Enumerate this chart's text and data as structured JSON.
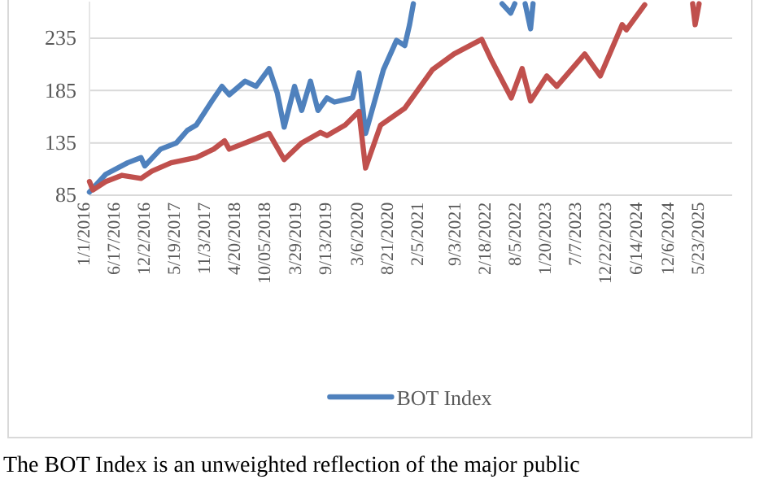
{
  "chart_data": {
    "type": "line",
    "series": [
      {
        "name": "BOT Index",
        "color": "#4f81bd",
        "x": [
          "2016-01-01",
          "2016-04-01",
          "2016-08-01",
          "2016-10-15",
          "2016-11-05",
          "2017-02-01",
          "2017-05-01",
          "2017-07-01",
          "2017-08-20",
          "2017-11-15",
          "2018-01-10",
          "2018-02-20",
          "2018-05-20",
          "2018-07-20",
          "2018-10-01",
          "2018-11-15",
          "2018-12-24",
          "2019-02-20",
          "2019-04-01",
          "2019-05-20",
          "2019-07-01",
          "2019-08-20",
          "2019-10-01",
          "2020-01-10",
          "2020-02-15",
          "2020-03-23",
          "2020-07-01",
          "2020-09-12",
          "2020-10-28",
          "2020-11-24",
          "2020-12-15",
          "2021-06-01",
          "2022-04-25",
          "2022-06-12",
          "2022-07-05",
          "2022-08-01",
          "2022-09-01",
          "2022-10-01",
          "2022-10-15"
        ],
        "values": [
          88,
          105,
          116,
          121,
          113,
          129,
          135,
          147,
          152,
          175,
          189,
          181,
          194,
          189,
          206,
          183,
          150,
          189,
          166,
          194,
          166,
          178,
          174,
          178,
          202,
          144,
          205,
          233,
          228,
          248,
          268,
          null,
          268,
          259,
          268,
          null,
          268,
          244,
          268
        ]
      },
      {
        "color": "#c0504d",
        "x": [
          "2016-01-01",
          "2016-01-20",
          "2016-04-01",
          "2016-07-01",
          "2016-10-15",
          "2016-12-15",
          "2017-04-01",
          "2017-08-20",
          "2017-11-25",
          "2018-01-25",
          "2018-02-20",
          "2018-05-20",
          "2018-10-01",
          "2018-12-24",
          "2019-04-01",
          "2019-07-15",
          "2019-08-20",
          "2019-11-30",
          "2020-02-15",
          "2020-03-23",
          "2020-06-15",
          "2020-10-28",
          "2021-04-01",
          "2021-07-30",
          "2022-01-01",
          "2022-02-25",
          "2022-06-15",
          "2022-08-15",
          "2022-10-01",
          "2022-12-31",
          "2023-02-25",
          "2023-07-31",
          "2023-10-26",
          "2024-02-25",
          "2024-03-20",
          "2024-06-30",
          "2024-08-25",
          "2025-03-25",
          "2025-04-08",
          "2025-04-30"
        ],
        "values": [
          98,
          90,
          98,
          104,
          101,
          108,
          116,
          121,
          129,
          137,
          129,
          135,
          144,
          119,
          135,
          145,
          142,
          152,
          165,
          111,
          152,
          168,
          205,
          220,
          234,
          214,
          178,
          206,
          175,
          199,
          189,
          220,
          199,
          248,
          243,
          267,
          null,
          268,
          248,
          268
        ]
      }
    ],
    "xlim": [
      "2016-01-01",
      "2025-11-01"
    ],
    "xticks": [
      {
        "value": "2016-01-01",
        "label": "1/1/2016"
      },
      {
        "value": "2016-06-17",
        "label": "6/17/2016"
      },
      {
        "value": "2016-12-02",
        "label": "12/2/2016"
      },
      {
        "value": "2017-05-19",
        "label": "5/19/2017"
      },
      {
        "value": "2017-11-03",
        "label": "11/3/2017"
      },
      {
        "value": "2018-04-20",
        "label": "4/20/2018"
      },
      {
        "value": "2018-10-05",
        "label": "10/05/2018"
      },
      {
        "value": "2019-03-29",
        "label": "3/29/2019"
      },
      {
        "value": "2019-09-13",
        "label": "9/13/2019"
      },
      {
        "value": "2020-03-06",
        "label": "3/6/2020"
      },
      {
        "value": "2020-08-21",
        "label": "8/21/2020"
      },
      {
        "value": "2021-02-05",
        "label": "2/5/2021"
      },
      {
        "value": "2021-09-03",
        "label": "9/3/2021"
      },
      {
        "value": "2022-02-18",
        "label": "2/18/2022"
      },
      {
        "value": "2022-08-05",
        "label": "8/5/2022"
      },
      {
        "value": "2023-01-20",
        "label": "1/20/2023"
      },
      {
        "value": "2023-07-07",
        "label": "7/7/2023"
      },
      {
        "value": "2023-12-22",
        "label": "12/22/2023"
      },
      {
        "value": "2024-06-14",
        "label": "6/14/2024"
      },
      {
        "value": "2024-12-06",
        "label": "12/6/2024"
      },
      {
        "value": "2025-05-23",
        "label": "5/23/2025"
      }
    ],
    "ylim": [
      85,
      270
    ],
    "yticks": [
      85,
      135,
      185,
      235
    ],
    "grid": "y",
    "legend": "bottom",
    "marker": "none",
    "line_style": "solid",
    "annotations": [
      "The BOT Index is an unweighted reflection of the major public"
    ]
  }
}
